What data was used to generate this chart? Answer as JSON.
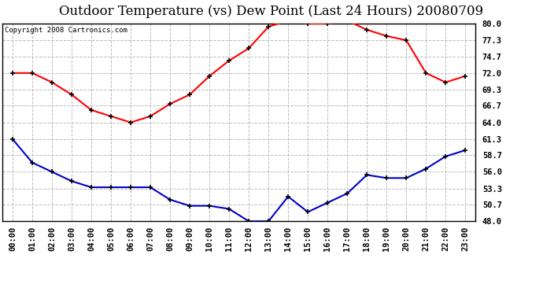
{
  "title": "Outdoor Temperature (vs) Dew Point (Last 24 Hours) 20080709",
  "copyright_text": "Copyright 2008 Cartronics.com",
  "hours": [
    "00:00",
    "01:00",
    "02:00",
    "03:00",
    "04:00",
    "05:00",
    "06:00",
    "07:00",
    "08:00",
    "09:00",
    "10:00",
    "11:00",
    "12:00",
    "13:00",
    "14:00",
    "15:00",
    "16:00",
    "17:00",
    "18:00",
    "19:00",
    "20:00",
    "21:00",
    "22:00",
    "23:00"
  ],
  "temp": [
    72.0,
    72.0,
    70.5,
    68.5,
    66.0,
    65.0,
    64.0,
    65.0,
    67.0,
    68.5,
    71.5,
    74.0,
    76.0,
    79.5,
    80.5,
    80.0,
    80.0,
    80.5,
    79.0,
    78.0,
    77.3,
    72.0,
    70.5,
    71.5
  ],
  "dew": [
    61.3,
    57.5,
    56.0,
    54.5,
    53.5,
    53.5,
    53.5,
    53.5,
    51.5,
    50.5,
    50.5,
    50.0,
    48.0,
    48.0,
    52.0,
    49.5,
    51.0,
    52.5,
    55.5,
    55.0,
    55.0,
    56.5,
    58.5,
    59.5
  ],
  "temp_color": "#ff0000",
  "dew_color": "#0000cc",
  "marker": "+",
  "marker_color": "#000000",
  "bg_color": "#ffffff",
  "plot_bg_color": "#ffffff",
  "grid_color": "#bbbbbb",
  "grid_style": "--",
  "ylim": [
    48.0,
    80.0
  ],
  "yticks": [
    48.0,
    50.7,
    53.3,
    56.0,
    58.7,
    61.3,
    64.0,
    66.7,
    69.3,
    72.0,
    74.7,
    77.3,
    80.0
  ],
  "title_fontsize": 12,
  "copyright_fontsize": 6.5,
  "tick_fontsize": 7.5,
  "line_width": 1.5,
  "marker_size": 5
}
